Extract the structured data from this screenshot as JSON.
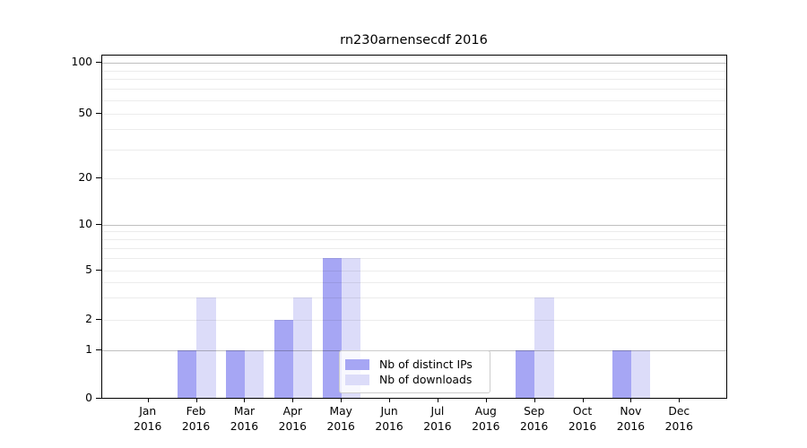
{
  "title": "rn230arnensecdf 2016",
  "colors": {
    "distinct_ips": "#a6a6f4",
    "downloads": "#dcdcf9",
    "axis": "#000000",
    "legend_border": "#cccccc"
  },
  "legend": {
    "items": [
      {
        "label": "Nb of distinct IPs",
        "color_key": "distinct_ips"
      },
      {
        "label": "Nb of downloads",
        "color_key": "downloads"
      }
    ]
  },
  "chart_data": {
    "type": "bar",
    "title": "rn230arnensecdf 2016",
    "categories": [
      "Jan",
      "Feb",
      "Mar",
      "Apr",
      "May",
      "Jun",
      "Jul",
      "Aug",
      "Sep",
      "Oct",
      "Nov",
      "Dec"
    ],
    "category_year": "2016",
    "series": [
      {
        "name": "Nb of distinct IPs",
        "color_key": "distinct_ips",
        "values": [
          0,
          1,
          1,
          2,
          6,
          0,
          0,
          0,
          1,
          0,
          1,
          0
        ]
      },
      {
        "name": "Nb of downloads",
        "color_key": "downloads",
        "values": [
          0,
          3,
          1,
          3,
          6,
          0,
          0,
          0,
          3,
          0,
          1,
          0
        ]
      }
    ],
    "xlabel": "",
    "ylabel": "",
    "yscale": "log above 1, linear 0-1",
    "y_ticks": [
      0,
      1,
      2,
      5,
      10,
      20,
      50,
      100
    ],
    "y_decade_lines": [
      1,
      10,
      100
    ],
    "y_minor_lines": [
      2,
      3,
      4,
      5,
      6,
      7,
      8,
      9,
      20,
      30,
      40,
      50,
      60,
      70,
      80,
      90
    ],
    "ylim": [
      0,
      112
    ],
    "grid": "both",
    "legend_position": "lower center"
  }
}
